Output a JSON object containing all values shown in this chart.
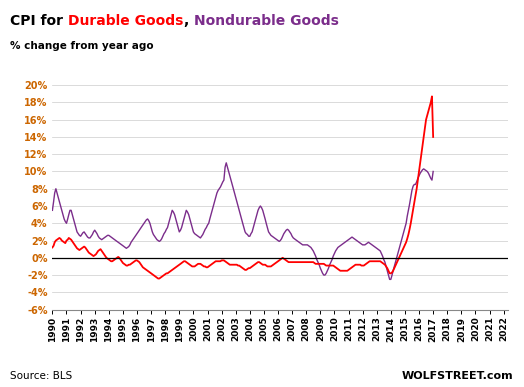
{
  "title_black": "CPI for ",
  "title_red": "Durable Goods",
  "title_comma": ", ",
  "title_purple": "Nondurable Goods",
  "subtitle": "% change from year ago",
  "source": "Source: BLS",
  "watermark": "WOLFSTREET.com",
  "durable_color": "#FF0000",
  "nondurable_color": "#7B2D8B",
  "background_color": "#FFFFFF",
  "ylim": [
    -6,
    20
  ],
  "yticks": [
    -6,
    -4,
    -2,
    0,
    2,
    4,
    6,
    8,
    10,
    12,
    14,
    16,
    18,
    20
  ],
  "ytick_labels": [
    "-6%",
    "-4%",
    "-2%",
    "0%",
    "2%",
    "4%",
    "6%",
    "8%",
    "10%",
    "12%",
    "14%",
    "16%",
    "18%",
    "20%"
  ],
  "durable_values": [
    1.2,
    1.4,
    1.8,
    2.0,
    2.1,
    2.2,
    2.3,
    2.2,
    2.0,
    1.9,
    1.8,
    1.7,
    2.0,
    2.1,
    2.3,
    2.2,
    2.1,
    1.9,
    1.7,
    1.5,
    1.3,
    1.1,
    1.0,
    0.9,
    1.0,
    1.1,
    1.2,
    1.3,
    1.2,
    1.0,
    0.8,
    0.6,
    0.5,
    0.4,
    0.3,
    0.2,
    0.3,
    0.4,
    0.6,
    0.8,
    0.9,
    1.0,
    0.8,
    0.6,
    0.4,
    0.2,
    0.0,
    -0.1,
    -0.2,
    -0.3,
    -0.4,
    -0.4,
    -0.3,
    -0.2,
    -0.1,
    0.0,
    0.1,
    0.0,
    -0.2,
    -0.4,
    -0.6,
    -0.7,
    -0.8,
    -0.9,
    -0.9,
    -0.8,
    -0.8,
    -0.7,
    -0.6,
    -0.5,
    -0.4,
    -0.3,
    -0.3,
    -0.4,
    -0.5,
    -0.7,
    -0.9,
    -1.1,
    -1.2,
    -1.3,
    -1.4,
    -1.5,
    -1.6,
    -1.7,
    -1.8,
    -1.9,
    -2.0,
    -2.1,
    -2.2,
    -2.3,
    -2.4,
    -2.4,
    -2.3,
    -2.2,
    -2.1,
    -2.0,
    -1.9,
    -1.8,
    -1.8,
    -1.7,
    -1.6,
    -1.5,
    -1.4,
    -1.3,
    -1.2,
    -1.1,
    -1.0,
    -0.9,
    -0.8,
    -0.7,
    -0.6,
    -0.5,
    -0.4,
    -0.4,
    -0.5,
    -0.6,
    -0.7,
    -0.8,
    -0.9,
    -1.0,
    -1.0,
    -1.0,
    -0.9,
    -0.8,
    -0.7,
    -0.7,
    -0.7,
    -0.8,
    -0.9,
    -1.0,
    -1.0,
    -1.1,
    -1.1,
    -1.0,
    -0.9,
    -0.8,
    -0.7,
    -0.6,
    -0.5,
    -0.4,
    -0.4,
    -0.4,
    -0.4,
    -0.4,
    -0.3,
    -0.3,
    -0.3,
    -0.4,
    -0.5,
    -0.6,
    -0.7,
    -0.8,
    -0.8,
    -0.8,
    -0.8,
    -0.8,
    -0.8,
    -0.8,
    -0.9,
    -0.9,
    -1.0,
    -1.1,
    -1.2,
    -1.3,
    -1.4,
    -1.4,
    -1.3,
    -1.2,
    -1.2,
    -1.1,
    -1.0,
    -0.9,
    -0.8,
    -0.7,
    -0.6,
    -0.5,
    -0.5,
    -0.6,
    -0.7,
    -0.8,
    -0.8,
    -0.8,
    -0.9,
    -1.0,
    -1.0,
    -1.0,
    -1.0,
    -0.9,
    -0.8,
    -0.7,
    -0.6,
    -0.5,
    -0.4,
    -0.3,
    -0.2,
    -0.1,
    0.0,
    -0.1,
    -0.2,
    -0.3,
    -0.4,
    -0.5,
    -0.5,
    -0.5,
    -0.5,
    -0.5,
    -0.5,
    -0.5,
    -0.5,
    -0.5,
    -0.5,
    -0.5,
    -0.5,
    -0.5,
    -0.5,
    -0.5,
    -0.5,
    -0.5,
    -0.5,
    -0.5,
    -0.5,
    -0.5,
    -0.5,
    -0.6,
    -0.7,
    -0.7,
    -0.7,
    -0.7,
    -0.7,
    -0.7,
    -0.7,
    -0.7,
    -0.8,
    -0.9,
    -0.9,
    -0.9,
    -0.9,
    -0.9,
    -0.9,
    -0.9,
    -1.0,
    -1.1,
    -1.2,
    -1.3,
    -1.4,
    -1.5,
    -1.5,
    -1.5,
    -1.5,
    -1.5,
    -1.5,
    -1.5,
    -1.4,
    -1.3,
    -1.2,
    -1.1,
    -1.0,
    -0.9,
    -0.8,
    -0.8,
    -0.8,
    -0.8,
    -0.8,
    -0.9,
    -0.9,
    -0.9,
    -0.8,
    -0.7,
    -0.6,
    -0.5,
    -0.4,
    -0.4,
    -0.4,
    -0.4,
    -0.4,
    -0.4,
    -0.4,
    -0.4,
    -0.4,
    -0.4,
    -0.5,
    -0.6,
    -0.7,
    -0.8,
    -1.0,
    -1.2,
    -1.5,
    -1.8,
    -1.8,
    -1.7,
    -1.5,
    -1.2,
    -0.9,
    -0.6,
    -0.3,
    0.0,
    0.3,
    0.6,
    0.9,
    1.2,
    1.5,
    1.8,
    2.2,
    2.7,
    3.3,
    4.0,
    4.8,
    5.6,
    6.4,
    7.2,
    8.0,
    9.0,
    10.0,
    11.0,
    12.0,
    13.0,
    14.0,
    15.0,
    16.0,
    16.5,
    17.0,
    17.5,
    18.0,
    18.7,
    14.0
  ],
  "nondurable_values": [
    5.5,
    6.5,
    7.5,
    8.0,
    7.5,
    7.0,
    6.5,
    6.0,
    5.5,
    5.0,
    4.5,
    4.2,
    4.0,
    4.5,
    5.0,
    5.5,
    5.5,
    5.0,
    4.5,
    4.0,
    3.5,
    3.0,
    2.8,
    2.6,
    2.5,
    2.7,
    2.9,
    3.0,
    2.8,
    2.6,
    2.4,
    2.3,
    2.3,
    2.5,
    2.7,
    3.0,
    3.2,
    3.0,
    2.8,
    2.5,
    2.3,
    2.2,
    2.1,
    2.2,
    2.3,
    2.4,
    2.5,
    2.6,
    2.6,
    2.5,
    2.4,
    2.3,
    2.2,
    2.1,
    2.0,
    1.9,
    1.8,
    1.7,
    1.6,
    1.5,
    1.4,
    1.3,
    1.2,
    1.1,
    1.2,
    1.3,
    1.5,
    1.8,
    2.0,
    2.2,
    2.4,
    2.6,
    2.8,
    3.0,
    3.2,
    3.4,
    3.6,
    3.8,
    4.0,
    4.2,
    4.4,
    4.5,
    4.3,
    4.0,
    3.5,
    3.0,
    2.7,
    2.5,
    2.3,
    2.1,
    2.0,
    1.9,
    2.0,
    2.2,
    2.5,
    2.8,
    3.0,
    3.3,
    3.5,
    4.0,
    4.5,
    5.0,
    5.5,
    5.3,
    5.0,
    4.5,
    4.0,
    3.5,
    3.0,
    3.2,
    3.5,
    4.0,
    4.5,
    5.0,
    5.5,
    5.3,
    5.0,
    4.5,
    4.0,
    3.5,
    3.0,
    2.8,
    2.7,
    2.6,
    2.5,
    2.4,
    2.3,
    2.5,
    2.7,
    3.0,
    3.3,
    3.5,
    3.8,
    4.0,
    4.5,
    5.0,
    5.5,
    6.0,
    6.5,
    7.0,
    7.5,
    7.8,
    8.0,
    8.2,
    8.5,
    8.8,
    9.0,
    10.5,
    11.0,
    10.5,
    10.0,
    9.5,
    9.0,
    8.5,
    8.0,
    7.5,
    7.0,
    6.5,
    6.0,
    5.5,
    5.0,
    4.5,
    4.0,
    3.5,
    3.0,
    2.8,
    2.7,
    2.5,
    2.5,
    2.8,
    3.0,
    3.5,
    4.0,
    4.5,
    5.0,
    5.5,
    5.8,
    6.0,
    5.8,
    5.5,
    5.0,
    4.5,
    4.0,
    3.5,
    3.0,
    2.8,
    2.6,
    2.5,
    2.4,
    2.3,
    2.2,
    2.1,
    2.0,
    1.9,
    2.0,
    2.2,
    2.5,
    2.8,
    3.0,
    3.2,
    3.3,
    3.2,
    3.0,
    2.8,
    2.5,
    2.3,
    2.2,
    2.1,
    2.0,
    1.9,
    1.8,
    1.7,
    1.6,
    1.5,
    1.5,
    1.5,
    1.5,
    1.5,
    1.4,
    1.3,
    1.2,
    1.0,
    0.8,
    0.5,
    0.2,
    -0.2,
    -0.5,
    -0.8,
    -1.2,
    -1.5,
    -1.8,
    -2.0,
    -2.0,
    -1.8,
    -1.5,
    -1.2,
    -0.8,
    -0.5,
    -0.2,
    0.2,
    0.5,
    0.8,
    1.0,
    1.2,
    1.3,
    1.4,
    1.5,
    1.6,
    1.7,
    1.8,
    1.9,
    2.0,
    2.1,
    2.2,
    2.3,
    2.4,
    2.3,
    2.2,
    2.1,
    2.0,
    1.9,
    1.8,
    1.7,
    1.6,
    1.5,
    1.5,
    1.5,
    1.6,
    1.7,
    1.8,
    1.7,
    1.6,
    1.5,
    1.4,
    1.3,
    1.2,
    1.1,
    1.0,
    0.9,
    0.8,
    0.5,
    0.2,
    -0.2,
    -0.5,
    -1.0,
    -1.5,
    -2.0,
    -2.5,
    -2.5,
    -2.0,
    -1.5,
    -1.0,
    -0.5,
    0.0,
    0.5,
    1.0,
    1.5,
    2.0,
    2.5,
    3.0,
    3.5,
    4.0,
    4.8,
    5.5,
    6.2,
    7.0,
    7.8,
    8.3,
    8.5,
    8.5,
    8.8,
    9.2,
    9.5,
    9.8,
    10.0,
    10.2,
    10.3,
    10.2,
    10.1,
    10.0,
    9.8,
    9.5,
    9.2,
    9.0,
    10.0
  ],
  "start_year": 1990,
  "start_month": 1,
  "end_year": 2022,
  "end_month": 3
}
